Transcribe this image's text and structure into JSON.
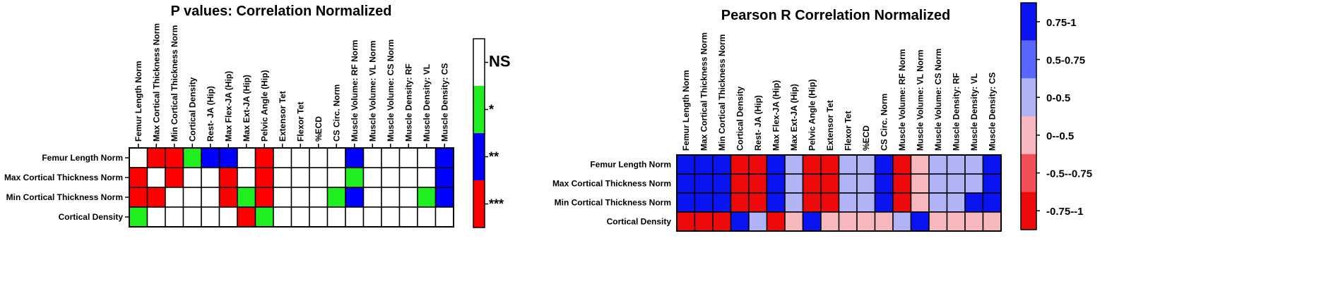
{
  "colors": {
    "ns": "#ffffff",
    "p1": "#1fef1f",
    "p2": "#0000ff",
    "p3": "#ff0000",
    "r_pos_high": "#0a14f0",
    "r_pos_mid": "#5a68ff",
    "r_pos_low": "#b0b4f6",
    "r_neg_low": "#f6b8bc",
    "r_neg_mid": "#f24e55",
    "r_neg_high": "#ee0a0a"
  },
  "chart_data": [
    {
      "type": "heatmap",
      "title": "P values: Correlation Normalized",
      "rows": [
        "Femur Length Norm",
        "Max Cortical Thickness Norm",
        "Min Cortical Thickness Norm",
        "Cortical Density"
      ],
      "columns": [
        "Femur Length Norm",
        "Max Cortical Thickness Norm",
        "Min Cortical Thickness Norm",
        "Cortical Density",
        "Rest- JA (Hip)",
        "Max Flex-JA (Hip)",
        "Max Ext-JA (Hip)",
        "Pelvic Angle (Hip)",
        "Extensor Tet",
        "Flexor Tet",
        "%ECD",
        "CS Circ. Norm",
        "Muscle Volume: RF Norm",
        "Muscle Volume: VL Norm",
        "Muscle Volume: CS Norm",
        "Muscle Density: RF",
        "Muscle Density: VL",
        "Muscle Density: CS"
      ],
      "values": [
        [
          0,
          3,
          3,
          1,
          2,
          2,
          0,
          3,
          0,
          0,
          0,
          0,
          2,
          0,
          0,
          0,
          0,
          2
        ],
        [
          3,
          0,
          3,
          0,
          0,
          3,
          0,
          3,
          0,
          0,
          0,
          0,
          1,
          0,
          0,
          0,
          0,
          2
        ],
        [
          3,
          3,
          0,
          0,
          0,
          3,
          1,
          3,
          0,
          0,
          0,
          1,
          2,
          0,
          0,
          0,
          1,
          2
        ],
        [
          1,
          0,
          0,
          0,
          0,
          0,
          3,
          1,
          0,
          0,
          0,
          0,
          0,
          0,
          0,
          0,
          0,
          0
        ]
      ],
      "legend": [
        {
          "label": "NS",
          "color_key": "ns"
        },
        {
          "label": "*",
          "color_key": "p1"
        },
        {
          "label": "**",
          "color_key": "p2"
        },
        {
          "label": "***",
          "color_key": "p3"
        }
      ]
    },
    {
      "type": "heatmap",
      "title": "Pearson R Correlation Normalized",
      "rows": [
        "Femur Length Norm",
        "Max Cortical Thickness Norm",
        "Min Cortical Thickness Norm",
        "Cortical Density"
      ],
      "columns": [
        "Femur Length Norm",
        "Max Cortical Thickness Norm",
        "Min Cortical Thickness Norm",
        "Cortical Density",
        "Rest- JA (Hip)",
        "Max Flex-JA (Hip)",
        "Max Ext-JA (Hip)",
        "Pelvic Angle (Hip)",
        "Extensor Tet",
        "Flexor Tet",
        "%ECD",
        "CS Circ. Norm",
        "Muscle Volume: RF Norm",
        "Muscle Volume: VL Norm",
        "Muscle Volume: CS Norm",
        "Muscle Density: RF",
        "Muscle Density: VL",
        "Muscle Density: CS"
      ],
      "values": [
        [
          1,
          1,
          1,
          -0.9,
          -1,
          0.9,
          0.4,
          -0.9,
          -0.9,
          0.4,
          0.4,
          0.9,
          -0.9,
          -0.4,
          0.4,
          0.4,
          0.4,
          0.9
        ],
        [
          1,
          1,
          1,
          -0.9,
          -0.9,
          0.9,
          0.4,
          -0.9,
          -0.9,
          0.4,
          0.4,
          0.9,
          -0.9,
          -0.4,
          0.4,
          0.4,
          0.4,
          0.9
        ],
        [
          1,
          1,
          1,
          -0.9,
          -0.9,
          0.9,
          0.4,
          -0.9,
          -0.9,
          0.4,
          0.4,
          0.9,
          -0.9,
          -0.4,
          0.4,
          0.4,
          0.9,
          0.9
        ],
        [
          -0.9,
          -0.9,
          -0.9,
          1,
          0.4,
          -0.9,
          -0.4,
          0.9,
          -0.4,
          -0.4,
          -0.4,
          -0.4,
          0.4,
          0.9,
          -0.4,
          -0.4,
          -0.4,
          -0.4
        ]
      ],
      "legend": [
        {
          "label": "0.75-1",
          "color_key": "r_pos_high"
        },
        {
          "label": "0.5-0.75",
          "color_key": "r_pos_mid"
        },
        {
          "label": "0-0.5",
          "color_key": "r_pos_low"
        },
        {
          "label": "0--0.5",
          "color_key": "r_neg_low"
        },
        {
          "label": "-0.5--0.75",
          "color_key": "r_neg_mid"
        },
        {
          "label": "-0.75--1",
          "color_key": "r_neg_high"
        }
      ]
    }
  ]
}
